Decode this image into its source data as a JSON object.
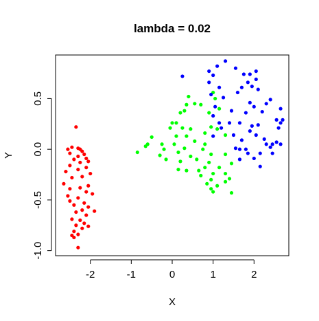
{
  "chart_data": {
    "type": "scatter",
    "title": "lambda = 0.02",
    "xlabel": "X",
    "ylabel": "Y",
    "xlim": [
      -2.85,
      2.85
    ],
    "ylim": [
      -1.05,
      0.93
    ],
    "xticks": [
      -2,
      -1,
      0,
      1,
      2
    ],
    "xtick_labels": [
      "-2",
      "-1",
      "0",
      "1",
      "2"
    ],
    "yticks": [
      -1.0,
      -0.5,
      0.0,
      0.5
    ],
    "ytick_labels": [
      "-1.0",
      "-0.5",
      "0.0",
      "0.5"
    ],
    "grid": false,
    "series": [
      {
        "color": "#ff0000",
        "points": [
          [
            -2.35,
            0.22
          ],
          [
            -2.55,
            0.0
          ],
          [
            -2.45,
            0.02
          ],
          [
            -2.3,
            0.01
          ],
          [
            -2.25,
            0.0
          ],
          [
            -2.2,
            -0.02
          ],
          [
            -2.15,
            -0.05
          ],
          [
            -2.5,
            -0.04
          ],
          [
            -2.3,
            -0.07
          ],
          [
            -2.1,
            -0.09
          ],
          [
            -2.4,
            -0.1
          ],
          [
            -2.05,
            -0.12
          ],
          [
            -2.25,
            -0.13
          ],
          [
            -2.5,
            -0.16
          ],
          [
            -2.1,
            -0.18
          ],
          [
            -2.3,
            -0.2
          ],
          [
            -2.6,
            -0.22
          ],
          [
            -2.0,
            -0.24
          ],
          [
            -2.2,
            -0.27
          ],
          [
            -2.45,
            -0.28
          ],
          [
            -2.65,
            -0.34
          ],
          [
            -2.05,
            -0.36
          ],
          [
            -2.25,
            -0.38
          ],
          [
            -2.5,
            -0.39
          ],
          [
            -2.1,
            -0.42
          ],
          [
            -1.95,
            -0.44
          ],
          [
            -2.55,
            -0.46
          ],
          [
            -2.3,
            -0.48
          ],
          [
            -2.5,
            -0.51
          ],
          [
            -2.15,
            -0.53
          ],
          [
            -2.4,
            -0.55
          ],
          [
            -2.05,
            -0.57
          ],
          [
            -2.2,
            -0.6
          ],
          [
            -1.9,
            -0.61
          ],
          [
            -2.35,
            -0.62
          ],
          [
            -2.1,
            -0.65
          ],
          [
            -2.45,
            -0.69
          ],
          [
            -2.25,
            -0.7
          ],
          [
            -2.15,
            -0.73
          ],
          [
            -2.35,
            -0.75
          ],
          [
            -2.05,
            -0.76
          ],
          [
            -2.2,
            -0.78
          ],
          [
            -2.4,
            -0.81
          ],
          [
            -2.3,
            -0.84
          ],
          [
            -2.45,
            -0.85
          ],
          [
            -2.4,
            -0.87
          ],
          [
            -2.3,
            -0.97
          ]
        ]
      },
      {
        "color": "#00ff00",
        "points": [
          [
            1.0,
            0.56
          ],
          [
            0.4,
            0.52
          ],
          [
            1.05,
            0.5
          ],
          [
            0.55,
            0.45
          ],
          [
            0.35,
            0.44
          ],
          [
            0.7,
            0.44
          ],
          [
            0.3,
            0.38
          ],
          [
            0.9,
            0.36
          ],
          [
            1.15,
            0.4
          ],
          [
            0.2,
            0.36
          ],
          [
            0.0,
            0.26
          ],
          [
            0.1,
            0.26
          ],
          [
            -0.05,
            0.21
          ],
          [
            0.25,
            0.21
          ],
          [
            0.45,
            0.2
          ],
          [
            0.95,
            0.22
          ],
          [
            1.1,
            0.2
          ],
          [
            -0.5,
            0.12
          ],
          [
            0.1,
            0.13
          ],
          [
            0.35,
            0.13
          ],
          [
            0.8,
            0.16
          ],
          [
            1.3,
            0.14
          ],
          [
            -0.6,
            0.05
          ],
          [
            -0.25,
            0.05
          ],
          [
            0.05,
            0.05
          ],
          [
            0.55,
            0.08
          ],
          [
            0.8,
            0.05
          ],
          [
            -0.65,
            0.03
          ],
          [
            -0.2,
            0.0
          ],
          [
            0.3,
            0.01
          ],
          [
            0.75,
            0.0
          ],
          [
            -0.85,
            -0.03
          ],
          [
            0.15,
            -0.03
          ],
          [
            0.95,
            -0.05
          ],
          [
            1.3,
            -0.05
          ],
          [
            -0.3,
            -0.06
          ],
          [
            0.45,
            -0.07
          ],
          [
            0.6,
            -0.1
          ],
          [
            -0.15,
            -0.1
          ],
          [
            0.2,
            -0.12
          ],
          [
            0.9,
            -0.13
          ],
          [
            1.45,
            -0.14
          ],
          [
            0.8,
            -0.18
          ],
          [
            0.15,
            -0.2
          ],
          [
            0.35,
            -0.21
          ],
          [
            0.65,
            -0.21
          ],
          [
            1.15,
            -0.18
          ],
          [
            1.0,
            -0.24
          ],
          [
            1.3,
            -0.24
          ],
          [
            0.7,
            -0.26
          ],
          [
            0.95,
            -0.3
          ],
          [
            1.4,
            -0.29
          ],
          [
            1.3,
            -0.32
          ],
          [
            0.85,
            -0.34
          ],
          [
            1.1,
            -0.36
          ],
          [
            0.95,
            -0.39
          ],
          [
            1.0,
            -0.42
          ],
          [
            1.45,
            -0.43
          ]
        ]
      },
      {
        "color": "#0000ff",
        "points": [
          [
            1.3,
            0.87
          ],
          [
            1.1,
            0.82
          ],
          [
            1.55,
            0.8
          ],
          [
            2.05,
            0.77
          ],
          [
            0.9,
            0.77
          ],
          [
            1.75,
            0.74
          ],
          [
            1.9,
            0.74
          ],
          [
            0.25,
            0.72
          ],
          [
            1.0,
            0.73
          ],
          [
            2.05,
            0.69
          ],
          [
            0.9,
            0.66
          ],
          [
            1.85,
            0.66
          ],
          [
            1.15,
            0.61
          ],
          [
            1.7,
            0.61
          ],
          [
            1.95,
            0.62
          ],
          [
            2.1,
            0.59
          ],
          [
            1.6,
            0.56
          ],
          [
            0.95,
            0.54
          ],
          [
            1.25,
            0.51
          ],
          [
            2.4,
            0.49
          ],
          [
            1.9,
            0.46
          ],
          [
            2.3,
            0.45
          ],
          [
            1.05,
            0.42
          ],
          [
            2.0,
            0.42
          ],
          [
            2.65,
            0.4
          ],
          [
            1.0,
            0.33
          ],
          [
            1.45,
            0.38
          ],
          [
            1.8,
            0.36
          ],
          [
            2.2,
            0.37
          ],
          [
            1.15,
            0.26
          ],
          [
            2.55,
            0.29
          ],
          [
            2.65,
            0.26
          ],
          [
            2.7,
            0.29
          ],
          [
            1.65,
            0.26
          ],
          [
            1.4,
            0.26
          ],
          [
            2.1,
            0.24
          ],
          [
            1.95,
            0.23
          ],
          [
            1.2,
            0.21
          ],
          [
            2.6,
            0.21
          ],
          [
            1.9,
            0.18
          ],
          [
            1.5,
            0.14
          ],
          [
            2.05,
            0.14
          ],
          [
            1.0,
            0.13
          ],
          [
            2.25,
            0.1
          ],
          [
            1.7,
            0.09
          ],
          [
            2.55,
            0.07
          ],
          [
            2.65,
            0.05
          ],
          [
            2.45,
            0.05
          ],
          [
            2.3,
            0.05
          ],
          [
            1.55,
            0.01
          ],
          [
            1.65,
            0.0
          ],
          [
            1.8,
            0.0
          ],
          [
            2.4,
            0.02
          ],
          [
            1.85,
            -0.04
          ],
          [
            2.15,
            -0.04
          ],
          [
            2.45,
            -0.04
          ],
          [
            1.65,
            -0.1
          ],
          [
            2.0,
            -0.09
          ],
          [
            2.15,
            -0.17
          ]
        ]
      }
    ]
  }
}
